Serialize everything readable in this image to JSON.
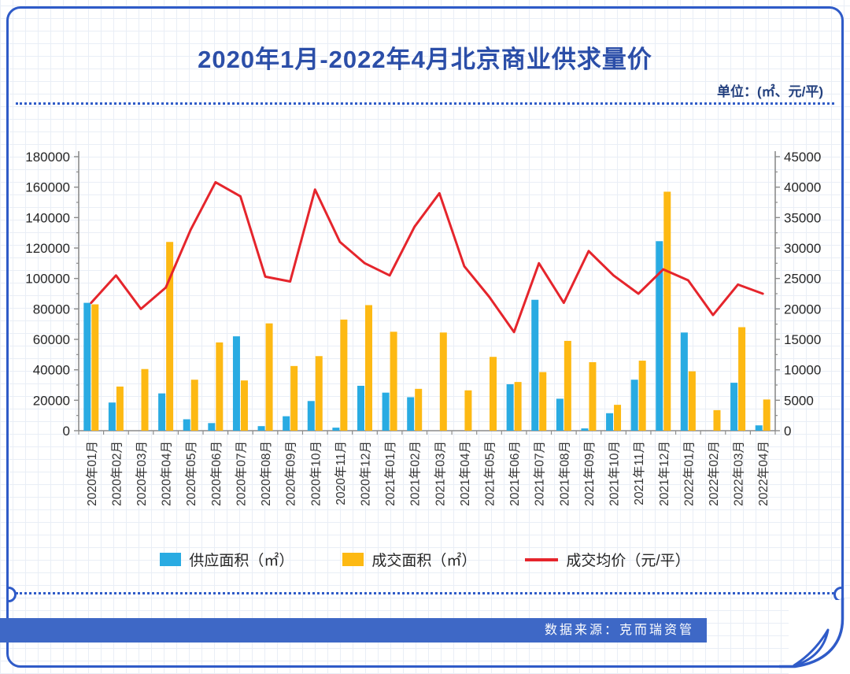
{
  "header": {
    "title": "2020年1月-2022年4月北京商业供求量价",
    "unit": "单位：(㎡、元/平)"
  },
  "source": {
    "label": "数据来源：克而瑞资管"
  },
  "colors": {
    "supply": "#29ABE2",
    "transaction": "#FDB913",
    "price": "#E5252C",
    "accent": "#2F5BC8",
    "title": "#2B4EA8",
    "band": "#3E68C6",
    "axis": "#8c8c8c",
    "tick_text": "#262626"
  },
  "chart_data": {
    "type": "bar",
    "title": "2020年1月-2022年4月北京商业供求量价",
    "categories": [
      "2020年01月",
      "2020年02月",
      "2020年03月",
      "2020年04月",
      "2020年05月",
      "2020年06月",
      "2020年07月",
      "2020年08月",
      "2020年09月",
      "2020年10月",
      "2020年11月",
      "2020年12月",
      "2021年01月",
      "2021年02月",
      "2021年03月",
      "2021年04月",
      "2021年05月",
      "2021年06月",
      "2021年07月",
      "2021年08月",
      "2021年09月",
      "2021年10月",
      "2021年11月",
      "2021年12月",
      "2022年01月",
      "2022年02月",
      "2022年03月",
      "2022年04月"
    ],
    "series": [
      {
        "name": "供应面积（㎡）",
        "type": "bar",
        "axis": "left",
        "color_key": "supply",
        "values": [
          84000,
          18500,
          0,
          24500,
          7500,
          5000,
          62000,
          3000,
          9500,
          19500,
          2000,
          29500,
          25000,
          22000,
          0,
          0,
          0,
          30500,
          86000,
          21000,
          1500,
          11500,
          33500,
          124500,
          64500,
          0,
          31500,
          3500
        ]
      },
      {
        "name": "成交面积（㎡）",
        "type": "bar",
        "axis": "left",
        "color_key": "transaction",
        "values": [
          83000,
          29000,
          40500,
          124000,
          33500,
          58000,
          33000,
          70500,
          42500,
          49000,
          73000,
          82500,
          65000,
          27500,
          64500,
          26500,
          48500,
          32000,
          38500,
          59000,
          45000,
          17000,
          46000,
          157000,
          39000,
          13500,
          68000,
          20500
        ]
      },
      {
        "name": "成交均价（元/平）",
        "type": "line",
        "axis": "right",
        "color_key": "price",
        "values": [
          21000,
          25500,
          20000,
          23500,
          33000,
          40800,
          38500,
          25300,
          24500,
          39600,
          31000,
          27500,
          25500,
          33500,
          39000,
          27000,
          22000,
          16200,
          27500,
          21000,
          29500,
          25500,
          22500,
          26500,
          24700,
          19000,
          24000,
          22500
        ]
      }
    ],
    "left_axis": {
      "min": 0,
      "max": 180000,
      "step": 20000
    },
    "right_axis": {
      "min": 0,
      "max": 45000,
      "step": 5000
    },
    "grid": false,
    "legend_position": "bottom"
  }
}
